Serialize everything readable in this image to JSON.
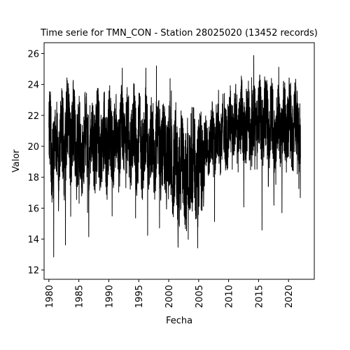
{
  "chart_data": {
    "type": "line",
    "title": "Time serie for TMN_CON - Station 28025020 (13452 records)",
    "xlabel": "Fecha",
    "ylabel": "Valor",
    "xlim": [
      1979.2,
      2024.3
    ],
    "ylim": [
      11.4,
      26.7
    ],
    "xticks": [
      1980,
      1985,
      1990,
      1995,
      2000,
      2005,
      2010,
      2015,
      2020
    ],
    "xtick_labels": [
      "1980",
      "1985",
      "1990",
      "1995",
      "2000",
      "2005",
      "2010",
      "2015",
      "2020"
    ],
    "yticks": [
      12,
      14,
      16,
      18,
      20,
      22,
      24,
      26
    ],
    "ytick_labels": [
      "12",
      "14",
      "16",
      "18",
      "20",
      "22",
      "24",
      "26"
    ],
    "grid": false,
    "line_color": "#000000",
    "series": [
      {
        "x": [
          1980.0,
          1980.5,
          1981.0,
          1981.5,
          1982.0,
          1982.5,
          1983.0,
          1983.5,
          1984.0,
          1984.5,
          1985.0,
          1985.5,
          1986.0,
          1986.5,
          1987.0,
          1987.5,
          1988.0,
          1988.5,
          1989.0,
          1989.5,
          1990.0,
          1990.5,
          1991.0,
          1991.5,
          1992.0,
          1992.5,
          1993.0,
          1993.5,
          1994.0,
          1994.5,
          1995.0,
          1995.5,
          1996.0,
          1996.5,
          1997.0,
          1997.5,
          1998.0,
          1998.5,
          1999.0,
          1999.5,
          2000.0,
          2000.5,
          2001.0,
          2001.5,
          2002.0,
          2002.5,
          2003.0,
          2003.5,
          2004.0,
          2004.5,
          2005.0,
          2005.5,
          2006.0,
          2006.5,
          2007.0,
          2007.5,
          2008.0,
          2008.5,
          2009.0,
          2009.5,
          2010.0,
          2010.5,
          2011.0,
          2011.5,
          2012.0,
          2012.5,
          2013.0,
          2013.5,
          2014.0,
          2014.5,
          2015.0,
          2015.5,
          2016.0,
          2016.5,
          2017.0,
          2017.5,
          2018.0,
          2018.5,
          2019.0,
          2019.5,
          2020.0,
          2020.5,
          2021.0,
          2021.5,
          2022.0
        ],
        "y": [
          21.2,
          19.0,
          20.5,
          19.5,
          21.0,
          19.2,
          22.0,
          19.8,
          21.5,
          19.5,
          21.0,
          18.8,
          20.8,
          19.6,
          21.2,
          19.9,
          21.0,
          19.5,
          20.8,
          19.6,
          21.3,
          19.8,
          21.0,
          19.4,
          21.4,
          19.7,
          21.0,
          19.5,
          21.2,
          19.9,
          20.8,
          19.3,
          20.9,
          19.6,
          20.6,
          19.2,
          21.0,
          19.8,
          20.2,
          18.9,
          19.8,
          18.6,
          19.5,
          18.2,
          18.8,
          17.5,
          18.9,
          17.8,
          19.4,
          18.0,
          18.5,
          18.6,
          19.5,
          20.3,
          20.8,
          20.0,
          21.0,
          20.5,
          21.3,
          20.4,
          21.5,
          20.8,
          21.6,
          20.7,
          21.8,
          20.9,
          21.7,
          20.8,
          21.5,
          21.0,
          21.9,
          21.1,
          22.0,
          21.2,
          21.8,
          20.9,
          21.4,
          20.8,
          21.6,
          21.0,
          21.8,
          21.0,
          21.7,
          20.9,
          21.5
        ],
        "spread": [
          2.6,
          2.8,
          2.6,
          2.5,
          2.7,
          2.9,
          2.8,
          2.6,
          2.9,
          2.8,
          2.7,
          3.0,
          2.6,
          2.7,
          2.8,
          2.6,
          2.8,
          2.9,
          2.7,
          2.6,
          2.8,
          2.7,
          2.6,
          2.8,
          2.7,
          2.6,
          2.8,
          2.7,
          2.6,
          2.7,
          2.8,
          2.7,
          2.6,
          2.8,
          2.7,
          2.8,
          2.6,
          2.7,
          2.9,
          2.8,
          3.0,
          2.9,
          3.1,
          3.2,
          3.6,
          3.4,
          3.0,
          3.1,
          3.2,
          3.0,
          3.6,
          3.2,
          2.4,
          1.8,
          2.0,
          2.2,
          2.3,
          2.2,
          2.1,
          2.2,
          2.3,
          2.2,
          2.4,
          2.3,
          2.5,
          2.3,
          2.4,
          2.3,
          2.2,
          2.3,
          2.4,
          2.3,
          2.5,
          2.4,
          2.3,
          2.4,
          2.2,
          2.1,
          2.5,
          2.4,
          2.6,
          2.5,
          2.4,
          2.3,
          2.4
        ]
      }
    ]
  }
}
